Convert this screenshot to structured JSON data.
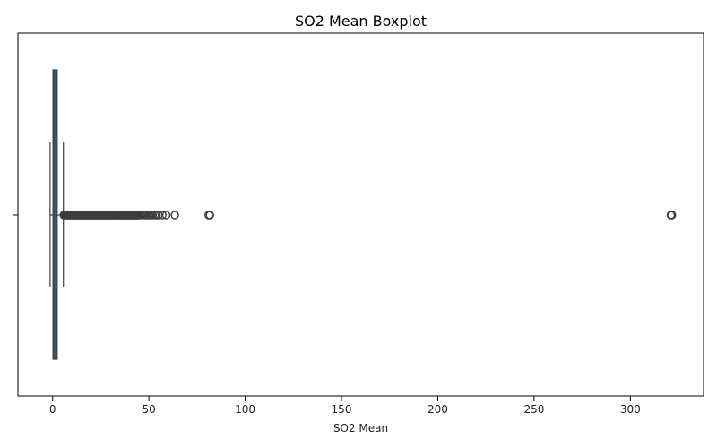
{
  "chart_data": {
    "type": "boxplot",
    "title": "SO2 Mean Boxplot",
    "xlabel": "SO2 Mean",
    "ylabel": "",
    "orientation": "horizontal",
    "xlim": [
      -18,
      338
    ],
    "xticks": [
      0,
      50,
      100,
      150,
      200,
      250,
      300
    ],
    "ytick_labels": [
      ""
    ],
    "grid": false,
    "box": {
      "whisker_low": -1.3,
      "q1": 0.2,
      "median": 1.0,
      "q3": 2.4,
      "whisker_high": 5.6,
      "color": "#3f6f93"
    },
    "outliers": {
      "dense_range": [
        5.8,
        45
      ],
      "points": [
        46,
        47,
        48,
        49,
        50,
        51,
        52,
        53,
        54,
        55,
        57,
        59,
        63.5,
        81,
        81.7,
        321,
        321.6
      ],
      "marker_edge_color": "#3d3d3d"
    }
  }
}
